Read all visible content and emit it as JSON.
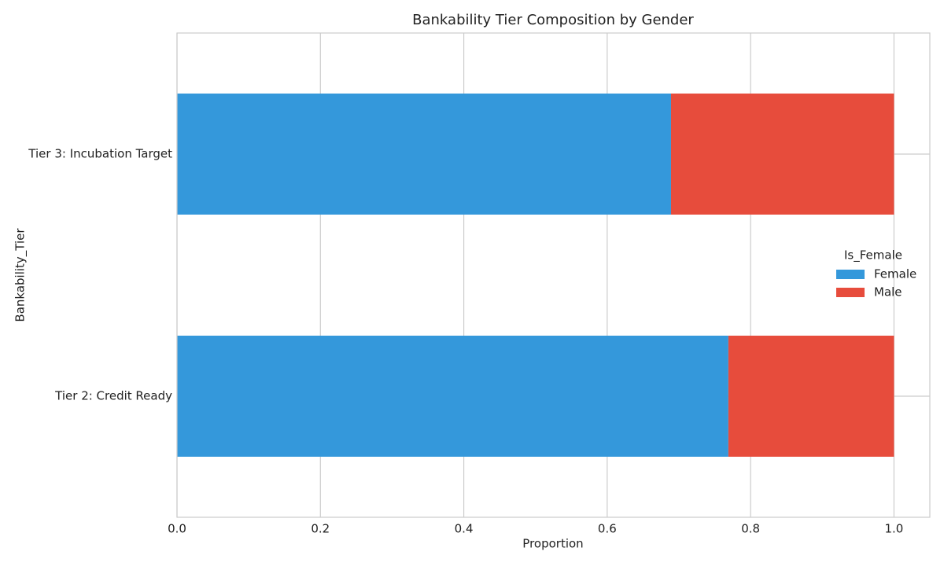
{
  "chart_data": {
    "type": "stacked_barh",
    "title": "Bankability Tier Composition by Gender",
    "xlabel": "Proportion",
    "ylabel": "Bankability_Tier",
    "categories": [
      "Tier 2: Credit Ready",
      "Tier 3: Incubation Target"
    ],
    "series": [
      {
        "name": "Female",
        "color": "#3498db",
        "values": [
          0.769,
          0.689
        ]
      },
      {
        "name": "Male",
        "color": "#e74c3c",
        "values": [
          0.231,
          0.311
        ]
      }
    ],
    "xlim": [
      0,
      1.05
    ],
    "xticks": [
      {
        "value": 0,
        "label": "0.0"
      },
      0.2,
      0.4,
      0.6,
      0.8,
      {
        "value": 1,
        "label": "1.0"
      }
    ],
    "grid": true,
    "legend_title": "Is_Female",
    "legend_position": "right"
  }
}
